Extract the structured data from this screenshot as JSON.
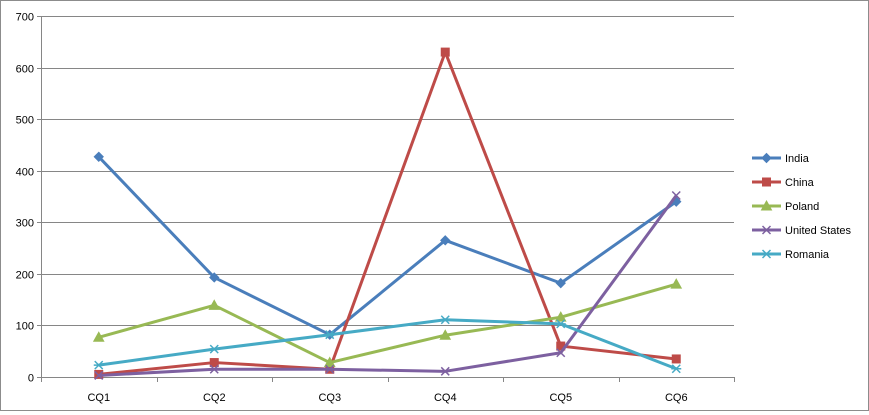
{
  "chart_data": {
    "type": "line",
    "title": "",
    "xlabel": "",
    "ylabel": "",
    "categories": [
      "CQ1",
      "CQ2",
      "CQ3",
      "CQ4",
      "CQ5",
      "CQ6"
    ],
    "ylim": [
      0,
      700
    ],
    "yticks": [
      0,
      100,
      200,
      300,
      400,
      500,
      600,
      700
    ],
    "grid": "horizontal",
    "legend_position": "right",
    "series": [
      {
        "name": "India",
        "color": "#4a7ebb",
        "marker": "diamond",
        "values": [
          427,
          193,
          82,
          265,
          182,
          340
        ]
      },
      {
        "name": "China",
        "color": "#be4b48",
        "marker": "square",
        "values": [
          5,
          28,
          15,
          630,
          60,
          35
        ]
      },
      {
        "name": "Poland",
        "color": "#98b954",
        "marker": "triangle",
        "values": [
          77,
          139,
          28,
          81,
          116,
          180
        ]
      },
      {
        "name": "United States",
        "color": "#7d60a0",
        "marker": "x",
        "values": [
          3,
          15,
          15,
          11,
          47,
          352
        ]
      },
      {
        "name": "Romania",
        "color": "#46aac5",
        "marker": "star",
        "values": [
          23,
          54,
          82,
          111,
          103,
          16
        ]
      }
    ]
  }
}
